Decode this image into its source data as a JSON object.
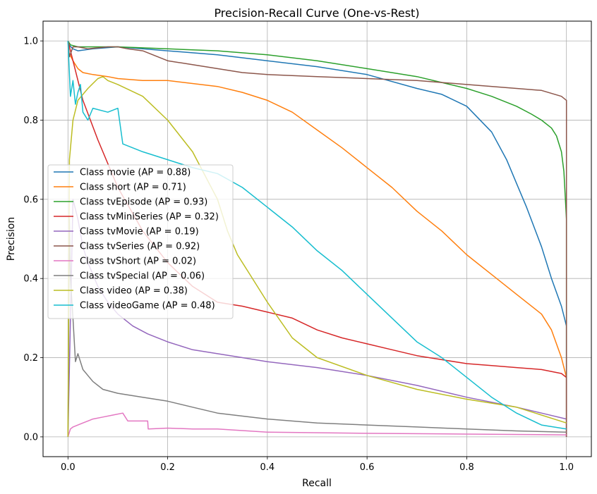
{
  "chart_data": {
    "type": "line",
    "title": "Precision-Recall Curve (One-vs-Rest)",
    "xlabel": "Recall",
    "ylabel": "Precision",
    "xlim": [
      -0.05,
      1.05
    ],
    "ylim": [
      -0.05,
      1.05
    ],
    "xticks": [
      "0.0",
      "0.2",
      "0.4",
      "0.6",
      "0.8",
      "1.0"
    ],
    "yticks": [
      "0.0",
      "0.2",
      "0.4",
      "0.6",
      "0.8",
      "1.0"
    ],
    "grid": true,
    "legend_position": "center-left",
    "series": [
      {
        "name": "Class movie (AP = 0.88)",
        "color": "#1f77b4",
        "x": [
          0,
          0.002,
          0.01,
          0.02,
          0.05,
          0.1,
          0.15,
          0.2,
          0.3,
          0.4,
          0.5,
          0.6,
          0.7,
          0.75,
          0.8,
          0.85,
          0.88,
          0.9,
          0.92,
          0.95,
          0.97,
          0.99,
          1.0,
          1.0
        ],
        "y": [
          1.0,
          0.99,
          0.98,
          0.975,
          0.98,
          0.985,
          0.98,
          0.975,
          0.965,
          0.95,
          0.935,
          0.915,
          0.88,
          0.865,
          0.835,
          0.77,
          0.7,
          0.64,
          0.58,
          0.48,
          0.4,
          0.33,
          0.28,
          0.0
        ]
      },
      {
        "name": "Class short (AP = 0.71)",
        "color": "#ff7f0e",
        "x": [
          0,
          0.002,
          0.01,
          0.02,
          0.03,
          0.05,
          0.08,
          0.1,
          0.15,
          0.2,
          0.3,
          0.35,
          0.4,
          0.45,
          0.5,
          0.55,
          0.6,
          0.65,
          0.7,
          0.75,
          0.8,
          0.85,
          0.9,
          0.95,
          0.97,
          0.99,
          1.0,
          1.0
        ],
        "y": [
          1.0,
          0.97,
          0.95,
          0.93,
          0.92,
          0.915,
          0.91,
          0.905,
          0.9,
          0.9,
          0.885,
          0.87,
          0.85,
          0.82,
          0.775,
          0.73,
          0.68,
          0.63,
          0.57,
          0.52,
          0.46,
          0.41,
          0.36,
          0.31,
          0.27,
          0.2,
          0.15,
          0.0
        ]
      },
      {
        "name": "Class tvEpisode (AP = 0.93)",
        "color": "#2ca02c",
        "x": [
          0,
          0.005,
          0.02,
          0.1,
          0.2,
          0.3,
          0.4,
          0.5,
          0.6,
          0.7,
          0.8,
          0.85,
          0.9,
          0.93,
          0.95,
          0.97,
          0.98,
          0.99,
          0.995,
          1.0,
          1.0
        ],
        "y": [
          1.0,
          0.99,
          0.985,
          0.985,
          0.98,
          0.975,
          0.965,
          0.95,
          0.93,
          0.91,
          0.88,
          0.86,
          0.835,
          0.815,
          0.8,
          0.78,
          0.76,
          0.72,
          0.67,
          0.55,
          0.0
        ]
      },
      {
        "name": "Class tvMiniSeries (AP = 0.32)",
        "color": "#d62728",
        "x": [
          0,
          0.01,
          0.03,
          0.06,
          0.1,
          0.15,
          0.2,
          0.25,
          0.3,
          0.35,
          0.4,
          0.45,
          0.5,
          0.55,
          0.6,
          0.65,
          0.7,
          0.75,
          0.8,
          0.85,
          0.9,
          0.95,
          0.99,
          1.0,
          1.0
        ],
        "y": [
          1.0,
          0.95,
          0.85,
          0.75,
          0.63,
          0.52,
          0.44,
          0.38,
          0.34,
          0.33,
          0.315,
          0.3,
          0.27,
          0.25,
          0.235,
          0.22,
          0.205,
          0.195,
          0.185,
          0.18,
          0.175,
          0.17,
          0.16,
          0.15,
          0.0
        ]
      },
      {
        "name": "Class tvMovie (AP = 0.19)",
        "color": "#9467bd",
        "x": [
          0,
          0.01,
          0.02,
          0.03,
          0.04,
          0.06,
          0.08,
          0.1,
          0.13,
          0.16,
          0.2,
          0.25,
          0.3,
          0.35,
          0.4,
          0.5,
          0.6,
          0.7,
          0.8,
          0.9,
          0.95,
          1.0,
          1.0
        ],
        "y": [
          0.0,
          0.6,
          0.55,
          0.48,
          0.44,
          0.38,
          0.34,
          0.31,
          0.28,
          0.26,
          0.24,
          0.22,
          0.21,
          0.2,
          0.19,
          0.175,
          0.155,
          0.13,
          0.1,
          0.075,
          0.06,
          0.045,
          0.0
        ]
      },
      {
        "name": "Class tvSeries (AP = 0.92)",
        "color": "#8c564b",
        "x": [
          0,
          0.003,
          0.01,
          0.02,
          0.04,
          0.08,
          0.1,
          0.12,
          0.15,
          0.2,
          0.25,
          0.3,
          0.35,
          0.4,
          0.5,
          0.6,
          0.7,
          0.8,
          0.9,
          0.95,
          0.99,
          1.0,
          1.0
        ],
        "y": [
          1.0,
          0.96,
          0.985,
          0.985,
          0.98,
          0.985,
          0.985,
          0.98,
          0.975,
          0.95,
          0.94,
          0.93,
          0.92,
          0.915,
          0.91,
          0.905,
          0.9,
          0.89,
          0.88,
          0.875,
          0.86,
          0.85,
          0.0
        ]
      },
      {
        "name": "Class tvShort (AP = 0.02)",
        "color": "#e377c2",
        "x": [
          0,
          0.005,
          0.01,
          0.02,
          0.03,
          0.05,
          0.07,
          0.09,
          0.11,
          0.12,
          0.16,
          0.161,
          0.2,
          0.25,
          0.3,
          0.4,
          0.6,
          0.8,
          1.0
        ],
        "y": [
          0.0,
          0.02,
          0.025,
          0.03,
          0.035,
          0.045,
          0.05,
          0.055,
          0.06,
          0.04,
          0.04,
          0.02,
          0.022,
          0.02,
          0.02,
          0.012,
          0.009,
          0.007,
          0.005
        ]
      },
      {
        "name": "Class tvSpecial (AP = 0.06)",
        "color": "#7f7f7f",
        "x": [
          0,
          0.003,
          0.005,
          0.01,
          0.015,
          0.02,
          0.03,
          0.05,
          0.07,
          0.1,
          0.15,
          0.2,
          0.25,
          0.3,
          0.4,
          0.5,
          0.6,
          0.7,
          0.8,
          0.9,
          1.0
        ],
        "y": [
          0.0,
          0.55,
          0.4,
          0.3,
          0.19,
          0.21,
          0.17,
          0.14,
          0.12,
          0.11,
          0.1,
          0.09,
          0.075,
          0.06,
          0.045,
          0.035,
          0.03,
          0.025,
          0.02,
          0.015,
          0.012
        ]
      },
      {
        "name": "Class video (AP = 0.38)",
        "color": "#bcbd22",
        "x": [
          0,
          0.003,
          0.01,
          0.02,
          0.04,
          0.06,
          0.07,
          0.08,
          0.1,
          0.15,
          0.2,
          0.25,
          0.3,
          0.32,
          0.34,
          0.36,
          0.4,
          0.45,
          0.5,
          0.6,
          0.7,
          0.8,
          0.9,
          1.0
        ],
        "y": [
          0.0,
          0.7,
          0.8,
          0.85,
          0.88,
          0.905,
          0.91,
          0.9,
          0.89,
          0.86,
          0.8,
          0.72,
          0.6,
          0.52,
          0.46,
          0.42,
          0.34,
          0.25,
          0.2,
          0.155,
          0.12,
          0.095,
          0.075,
          0.035
        ]
      },
      {
        "name": "Class videoGame (AP = 0.48)",
        "color": "#17becf",
        "x": [
          0,
          0.005,
          0.01,
          0.015,
          0.02,
          0.025,
          0.03,
          0.04,
          0.05,
          0.08,
          0.1,
          0.11,
          0.15,
          0.2,
          0.25,
          0.3,
          0.35,
          0.4,
          0.45,
          0.5,
          0.55,
          0.6,
          0.65,
          0.7,
          0.75,
          0.8,
          0.85,
          0.9,
          0.95,
          1.0
        ],
        "y": [
          1.0,
          0.86,
          0.9,
          0.84,
          0.87,
          0.89,
          0.82,
          0.8,
          0.83,
          0.82,
          0.83,
          0.74,
          0.72,
          0.7,
          0.68,
          0.665,
          0.63,
          0.58,
          0.53,
          0.47,
          0.42,
          0.36,
          0.3,
          0.24,
          0.2,
          0.15,
          0.1,
          0.06,
          0.03,
          0.02
        ]
      }
    ]
  }
}
